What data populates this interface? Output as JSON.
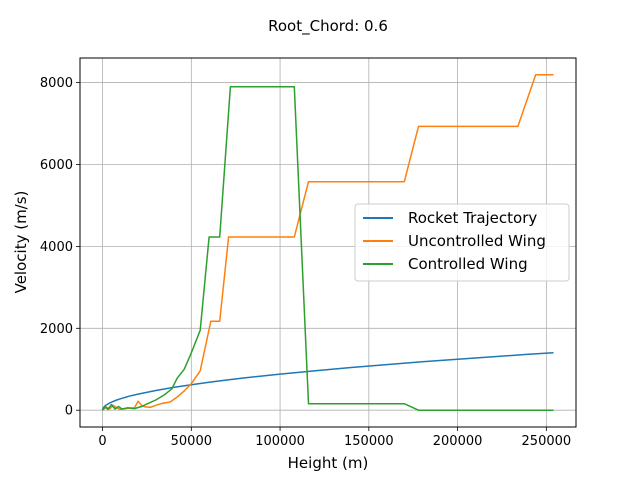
{
  "chart_data": {
    "type": "line",
    "title": "Root_Chord: 0.6",
    "xlabel": "Height (m)",
    "ylabel": "Velocity (m/s)",
    "xlim": [
      -12700,
      266700
    ],
    "ylim": [
      -410,
      8600
    ],
    "xticks": [
      0,
      50000,
      100000,
      150000,
      200000,
      250000
    ],
    "yticks": [
      0,
      2000,
      4000,
      6000,
      8000
    ],
    "grid": true,
    "legend_position": "center-right",
    "series": [
      {
        "name": "Rocket Trajectory",
        "color": "#1f77b4",
        "points": [
          [
            0,
            0
          ],
          [
            500,
            62
          ],
          [
            1000,
            88
          ],
          [
            2000,
            124
          ],
          [
            4000,
            176
          ],
          [
            6000,
            215
          ],
          [
            8000,
            249
          ],
          [
            10000,
            278
          ],
          [
            15000,
            341
          ],
          [
            20000,
            394
          ],
          [
            30000,
            482
          ],
          [
            40000,
            557
          ],
          [
            50000,
            623
          ],
          [
            60000,
            682
          ],
          [
            70000,
            737
          ],
          [
            80000,
            788
          ],
          [
            100000,
            881
          ],
          [
            120000,
            965
          ],
          [
            140000,
            1042
          ],
          [
            160000,
            1114
          ],
          [
            180000,
            1182
          ],
          [
            200000,
            1246
          ],
          [
            220000,
            1307
          ],
          [
            240000,
            1365
          ],
          [
            254000,
            1404
          ]
        ]
      },
      {
        "name": "Uncontrolled Wing",
        "color": "#ff7f0e",
        "points": [
          [
            0,
            0
          ],
          [
            2000,
            80
          ],
          [
            4000,
            30
          ],
          [
            6000,
            120
          ],
          [
            8000,
            60
          ],
          [
            10000,
            20
          ],
          [
            14000,
            50
          ],
          [
            18000,
            60
          ],
          [
            20000,
            220
          ],
          [
            22000,
            120
          ],
          [
            24000,
            80
          ],
          [
            27000,
            70
          ],
          [
            30000,
            120
          ],
          [
            34000,
            170
          ],
          [
            38000,
            200
          ],
          [
            42000,
            320
          ],
          [
            46000,
            470
          ],
          [
            50000,
            650
          ],
          [
            55000,
            960
          ],
          [
            61000,
            2170
          ],
          [
            66000,
            2170
          ],
          [
            71000,
            4230
          ],
          [
            108000,
            4230
          ],
          [
            116000,
            5580
          ],
          [
            170000,
            5580
          ],
          [
            178000,
            6930
          ],
          [
            234000,
            6930
          ],
          [
            244000,
            8190
          ],
          [
            254000,
            8190
          ]
        ]
      },
      {
        "name": "Controlled Wing",
        "color": "#2ca02c",
        "points": [
          [
            0,
            0
          ],
          [
            1500,
            80
          ],
          [
            3000,
            20
          ],
          [
            5000,
            140
          ],
          [
            7000,
            30
          ],
          [
            9000,
            90
          ],
          [
            11000,
            30
          ],
          [
            14000,
            60
          ],
          [
            18000,
            40
          ],
          [
            22000,
            90
          ],
          [
            26000,
            170
          ],
          [
            30000,
            250
          ],
          [
            35000,
            380
          ],
          [
            39000,
            520
          ],
          [
            42000,
            780
          ],
          [
            46000,
            1000
          ],
          [
            50000,
            1400
          ],
          [
            55000,
            1950
          ],
          [
            60000,
            4230
          ],
          [
            66000,
            4230
          ],
          [
            72000,
            7900
          ],
          [
            108000,
            7900
          ],
          [
            116000,
            160
          ],
          [
            170000,
            160
          ],
          [
            178000,
            0
          ],
          [
            254000,
            0
          ]
        ]
      }
    ]
  }
}
